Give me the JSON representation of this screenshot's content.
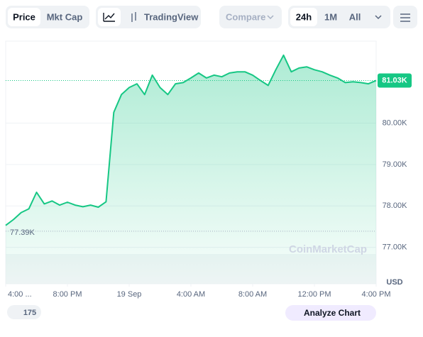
{
  "toolbar": {
    "price": "Price",
    "mkt_cap": "Mkt Cap",
    "tradingview": "TradingView",
    "compare": "Compare",
    "range_24h": "24h",
    "range_1m": "1M",
    "range_all": "All"
  },
  "chart_data": {
    "type": "area",
    "color": "#16c784",
    "grid": true,
    "x": [
      0,
      0.5,
      1,
      1.5,
      2,
      2.5,
      3,
      3.5,
      4,
      4.5,
      5,
      5.5,
      6,
      6.5,
      7,
      7.5,
      8,
      8.5,
      9,
      9.5,
      10,
      10.5,
      11,
      11.5,
      12,
      12.5,
      13,
      13.5,
      14,
      14.5,
      15,
      15.5,
      16,
      16.5,
      17,
      17.5,
      18,
      18.5,
      19,
      19.5,
      20,
      20.5,
      21,
      21.5,
      22,
      22.5,
      23,
      23.5,
      24
    ],
    "series": [
      {
        "name": "Price",
        "color": "#16c784",
        "values": [
          77530,
          77670,
          77840,
          77930,
          78330,
          78050,
          78120,
          78020,
          78090,
          78020,
          77980,
          78020,
          77970,
          78100,
          80260,
          80690,
          80860,
          80950,
          80690,
          81160,
          80860,
          80690,
          80950,
          80980,
          81090,
          81210,
          81090,
          81160,
          81120,
          81210,
          81240,
          81240,
          81160,
          81030,
          80910,
          81290,
          81640,
          81240,
          81330,
          81360,
          81290,
          81240,
          81160,
          81090,
          80980,
          81000,
          80980,
          80950,
          81030
        ]
      }
    ],
    "xlim": [
      0,
      24
    ],
    "xticks": [
      {
        "value": 0,
        "label": "4:00 ..."
      },
      {
        "value": 4,
        "label": "8:00 PM"
      },
      {
        "value": 8,
        "label": "19 Sep"
      },
      {
        "value": 12,
        "label": "4:00 AM"
      },
      {
        "value": 16,
        "label": "8:00 AM"
      },
      {
        "value": 20,
        "label": "12:00 PM"
      },
      {
        "value": 24,
        "label": "4:00 PM"
      }
    ],
    "ylim": [
      76120,
      81980
    ],
    "yticks": [
      {
        "value": 77000,
        "label": "77.00K"
      },
      {
        "value": 78000,
        "label": "78.00K"
      },
      {
        "value": 79000,
        "label": "79.00K"
      },
      {
        "value": 80000,
        "label": "80.00K"
      }
    ],
    "current_price": {
      "value": 81030,
      "label": "81.03K"
    },
    "low_price": {
      "value": 77390,
      "label": "77.39K"
    },
    "unit": "USD",
    "watermark": "CoinMarketCap"
  },
  "footer": {
    "badge": "175",
    "analyze": "Analyze Chart"
  }
}
